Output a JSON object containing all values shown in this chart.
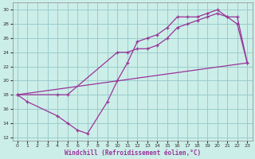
{
  "xlabel": "Windchill (Refroidissement éolien,°C)",
  "bg_color": "#cceee8",
  "line_color": "#993399",
  "grid_color": "#99cccc",
  "xlim": [
    -0.5,
    23.5
  ],
  "ylim": [
    11.5,
    31.0
  ],
  "xticks": [
    0,
    1,
    2,
    3,
    4,
    5,
    6,
    7,
    8,
    9,
    10,
    11,
    12,
    13,
    14,
    15,
    16,
    17,
    18,
    19,
    20,
    21,
    22,
    23
  ],
  "yticks": [
    12,
    14,
    16,
    18,
    20,
    22,
    24,
    26,
    28,
    30
  ],
  "series": [
    {
      "x": [
        0,
        1,
        4,
        5,
        6,
        7,
        9,
        10,
        11,
        12,
        13,
        14,
        15,
        16,
        17,
        18,
        19,
        20,
        21,
        22,
        23
      ],
      "y": [
        18,
        17,
        15,
        14,
        13,
        12.5,
        17,
        20,
        22.5,
        25.5,
        26,
        26.5,
        27.5,
        29,
        29,
        29,
        29.5,
        30,
        29,
        29,
        22.5
      ],
      "marker": "+"
    },
    {
      "x": [
        0,
        4,
        5,
        10,
        11,
        12,
        13,
        14,
        15,
        16,
        17,
        18,
        19,
        20,
        21,
        22,
        23
      ],
      "y": [
        18,
        18,
        18,
        24,
        24,
        24.5,
        24.5,
        25,
        26,
        27.5,
        28,
        28.5,
        29,
        29.5,
        29,
        28,
        22.5
      ],
      "marker": "+"
    },
    {
      "x": [
        0,
        23
      ],
      "y": [
        18,
        22.5
      ],
      "marker": null
    }
  ]
}
